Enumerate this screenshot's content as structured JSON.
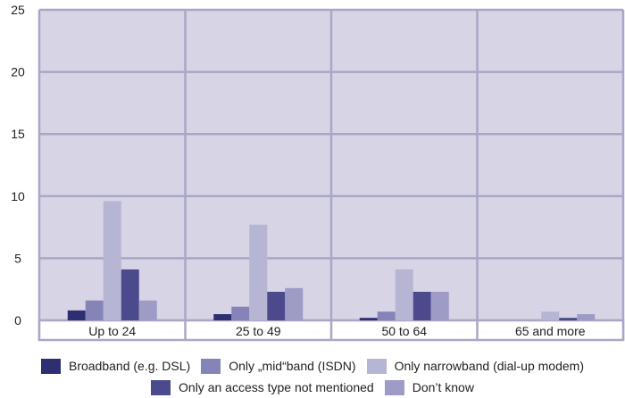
{
  "chart_data": {
    "type": "bar",
    "categories": [
      "Up to 24",
      "25 to 49",
      "50 to 64",
      "65 and more"
    ],
    "series": [
      {
        "name": "Broadband (e.g. DSL)",
        "color": "#2e2f72",
        "values": [
          0.8,
          0.5,
          0.2,
          0.0
        ]
      },
      {
        "name": "Only „mid“band (ISDN)",
        "color": "#8584b8",
        "values": [
          1.6,
          1.1,
          0.7,
          0.0
        ]
      },
      {
        "name": "Only narrowband (dial-up modem)",
        "color": "#b7b5d4",
        "values": [
          9.6,
          7.7,
          4.1,
          0.7
        ]
      },
      {
        "name": "Only an access type not mentioned",
        "color": "#4a4a8c",
        "values": [
          4.1,
          2.3,
          2.3,
          0.2
        ]
      },
      {
        "name": "Don’t know",
        "color": "#9e9cc6",
        "values": [
          1.6,
          2.6,
          2.3,
          0.5
        ]
      }
    ],
    "ylim": [
      0,
      25
    ],
    "yticks": [
      0,
      5,
      10,
      15,
      20,
      25
    ],
    "grid": true,
    "legend_position": "bottom",
    "plot_background": "#d6d4e5",
    "grid_color": "#a9a7c6"
  }
}
